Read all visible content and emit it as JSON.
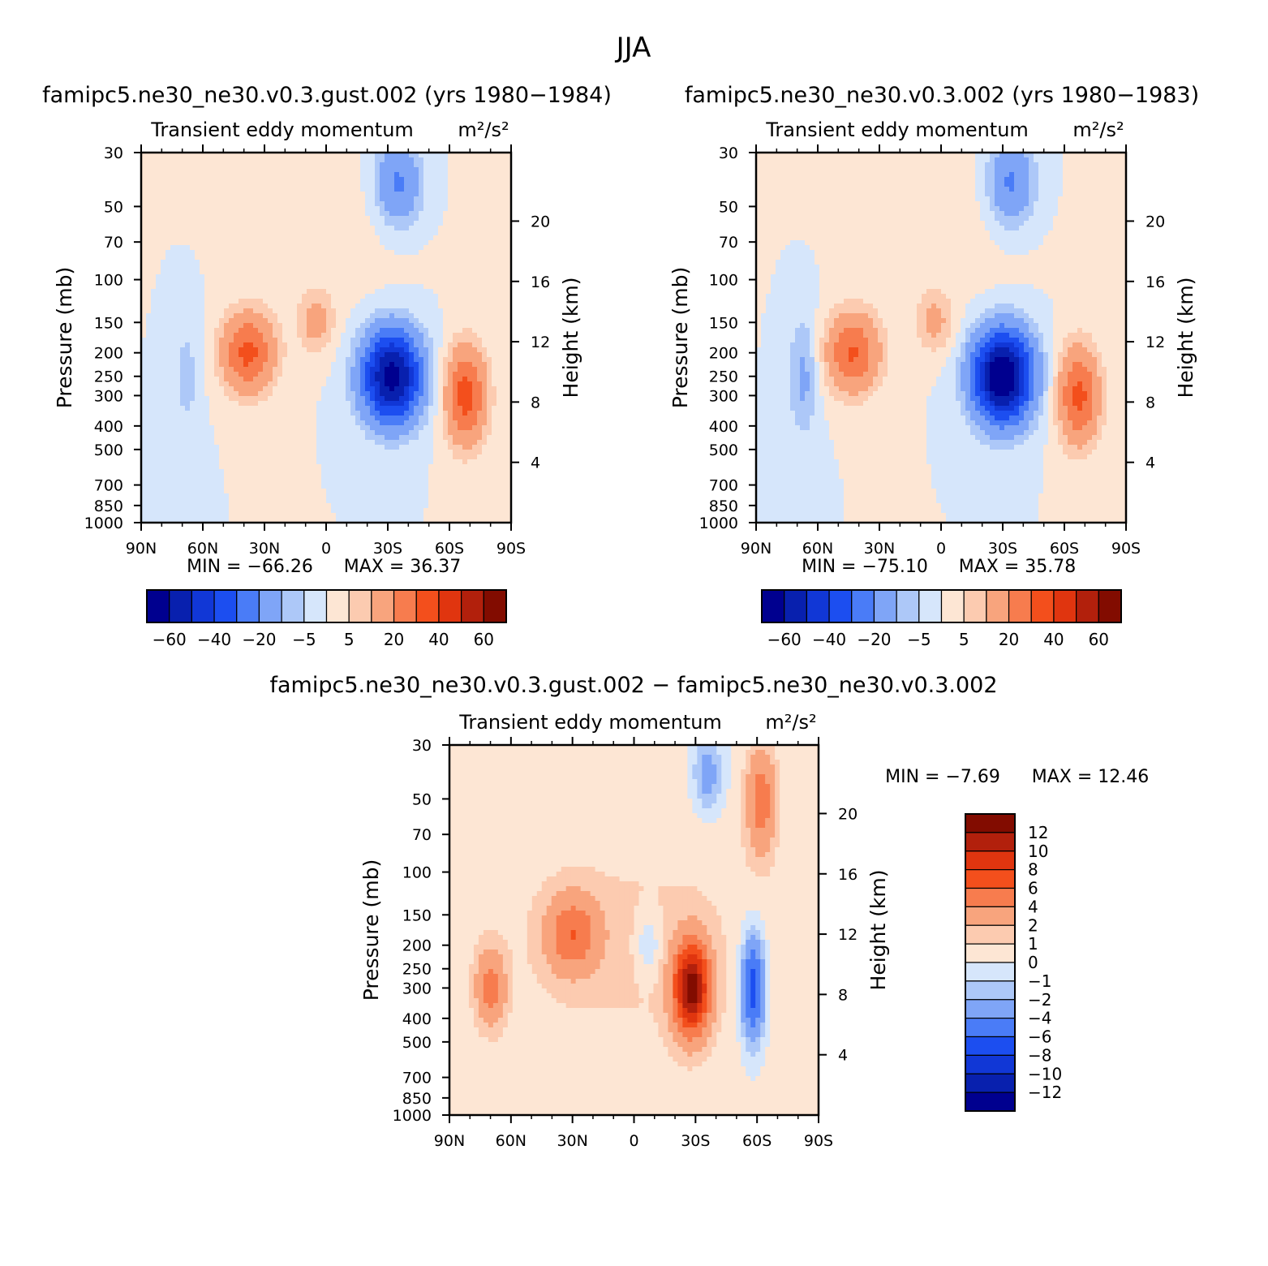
{
  "figure": {
    "title": "JJA"
  },
  "chart_data": [
    {
      "type": "heatmap",
      "panel": "top-left",
      "title": "famipc5.ne30_ne30.v0.3.gust.002 (yrs 1980−1984)",
      "subtitle": "Transient eddy momentum",
      "units": "m²/s²",
      "xlabel": "",
      "ylabel": "Pressure (mb)",
      "y2label": "Height (km)",
      "x_ticks": [
        "90N",
        "60N",
        "30N",
        "0",
        "30S",
        "60S",
        "90S"
      ],
      "x_values": [
        90,
        60,
        30,
        0,
        -30,
        -60,
        -90
      ],
      "xlim": [
        90,
        -90
      ],
      "y_ticks": [
        30,
        50,
        70,
        100,
        150,
        200,
        250,
        300,
        400,
        500,
        700,
        850,
        1000
      ],
      "y_scale": "log",
      "ylim": [
        1000,
        30
      ],
      "y2_ticks": [
        4,
        8,
        12,
        16,
        20
      ],
      "min_label": "MIN = −66.26",
      "max_label": "MAX = 36.37",
      "levels": [
        -60,
        -50,
        -40,
        -30,
        -20,
        -10,
        -5,
        0,
        5,
        10,
        20,
        30,
        40,
        50,
        60
      ],
      "colorbar_labels": [
        "−60",
        "−40",
        "−20",
        "−5",
        "5",
        "20",
        "40",
        "60"
      ],
      "colorbar_orientation": "horizontal",
      "features": [
        {
          "lat": 38,
          "p": 200,
          "value": 33,
          "sigma_lat": 9,
          "sigma_logp": 0.26
        },
        {
          "lat": 5,
          "p": 150,
          "value": 13,
          "sigma_lat": 6,
          "sigma_logp": 0.2
        },
        {
          "lat": -68,
          "p": 300,
          "value": 35,
          "sigma_lat": 7,
          "sigma_logp": 0.32
        },
        {
          "lat": -32,
          "p": 250,
          "value": -66.26,
          "sigma_lat": 10,
          "sigma_logp": 0.3
        },
        {
          "lat": -35,
          "p": 40,
          "value": -22,
          "sigma_lat": 8,
          "sigma_logp": 0.28
        },
        {
          "lat": 68,
          "p": 250,
          "value": -7,
          "sigma_lat": 5,
          "sigma_logp": 0.4
        },
        {
          "lat": -2,
          "p": 60,
          "value": 3,
          "sigma_lat": 25,
          "sigma_logp": 0.6
        }
      ]
    },
    {
      "type": "heatmap",
      "panel": "top-right",
      "title": "famipc5.ne30_ne30.v0.3.002 (yrs 1980−1983)",
      "subtitle": "Transient eddy momentum",
      "units": "m²/s²",
      "xlabel": "",
      "ylabel": "Pressure (mb)",
      "y2label": "Height (km)",
      "x_ticks": [
        "90N",
        "60N",
        "30N",
        "0",
        "30S",
        "60S",
        "90S"
      ],
      "x_values": [
        90,
        60,
        30,
        0,
        -30,
        -60,
        -90
      ],
      "xlim": [
        90,
        -90
      ],
      "y_ticks": [
        30,
        50,
        70,
        100,
        150,
        200,
        250,
        300,
        400,
        500,
        700,
        850,
        1000
      ],
      "y_scale": "log",
      "ylim": [
        1000,
        30
      ],
      "y2_ticks": [
        4,
        8,
        12,
        16,
        20
      ],
      "min_label": "MIN = −75.10",
      "max_label": "MAX = 35.78",
      "levels": [
        -60,
        -50,
        -40,
        -30,
        -20,
        -10,
        -5,
        0,
        5,
        10,
        20,
        30,
        40,
        50,
        60
      ],
      "colorbar_labels": [
        "−60",
        "−40",
        "−20",
        "−5",
        "5",
        "20",
        "40",
        "60"
      ],
      "colorbar_orientation": "horizontal",
      "features": [
        {
          "lat": 43,
          "p": 200,
          "value": 31,
          "sigma_lat": 9,
          "sigma_logp": 0.26
        },
        {
          "lat": 3,
          "p": 150,
          "value": 12,
          "sigma_lat": 6,
          "sigma_logp": 0.2
        },
        {
          "lat": -67,
          "p": 300,
          "value": 33,
          "sigma_lat": 7,
          "sigma_logp": 0.32
        },
        {
          "lat": -30,
          "p": 250,
          "value": -75.1,
          "sigma_lat": 10,
          "sigma_logp": 0.3
        },
        {
          "lat": -34,
          "p": 40,
          "value": -22,
          "sigma_lat": 8,
          "sigma_logp": 0.28
        },
        {
          "lat": 67,
          "p": 250,
          "value": -12,
          "sigma_lat": 5,
          "sigma_logp": 0.4
        },
        {
          "lat": -2,
          "p": 60,
          "value": 3,
          "sigma_lat": 25,
          "sigma_logp": 0.6
        }
      ]
    },
    {
      "type": "heatmap",
      "panel": "bottom-center",
      "title": "famipc5.ne30_ne30.v0.3.gust.002 − famipc5.ne30_ne30.v0.3.002",
      "subtitle": "Transient eddy momentum",
      "units": "m²/s²",
      "xlabel": "",
      "ylabel": "Pressure (mb)",
      "y2label": "Height (km)",
      "x_ticks": [
        "90N",
        "60N",
        "30N",
        "0",
        "30S",
        "60S",
        "90S"
      ],
      "x_values": [
        90,
        60,
        30,
        0,
        -30,
        -60,
        -90
      ],
      "xlim": [
        90,
        -90
      ],
      "y_ticks": [
        30,
        50,
        70,
        100,
        150,
        200,
        250,
        300,
        400,
        500,
        700,
        850,
        1000
      ],
      "y_scale": "log",
      "ylim": [
        1000,
        30
      ],
      "y2_ticks": [
        4,
        8,
        12,
        16,
        20
      ],
      "min_label": "MIN = −7.69",
      "max_label": "MAX = 12.46",
      "levels": [
        -12,
        -10,
        -8,
        -6,
        -4,
        -2,
        -1,
        0,
        1,
        2,
        4,
        6,
        8,
        10,
        12
      ],
      "colorbar_labels": [
        "12",
        "10",
        "8",
        "6",
        "4",
        "2",
        "1",
        "0",
        "−1",
        "−2",
        "−4",
        "−6",
        "−8",
        "−10",
        "−12"
      ],
      "colorbar_orientation": "vertical",
      "features": [
        {
          "lat": -28,
          "p": 300,
          "value": 12.46,
          "sigma_lat": 6,
          "sigma_logp": 0.3
        },
        {
          "lat": 30,
          "p": 180,
          "value": 5,
          "sigma_lat": 9,
          "sigma_logp": 0.25
        },
        {
          "lat": 70,
          "p": 300,
          "value": 4.5,
          "sigma_lat": 5,
          "sigma_logp": 0.25
        },
        {
          "lat": -58,
          "p": 300,
          "value": -7.69,
          "sigma_lat": 4,
          "sigma_logp": 0.35
        },
        {
          "lat": -62,
          "p": 50,
          "value": 5,
          "sigma_lat": 5,
          "sigma_logp": 0.35
        },
        {
          "lat": -36,
          "p": 40,
          "value": -3,
          "sigma_lat": 5,
          "sigma_logp": 0.25
        },
        {
          "lat": -7,
          "p": 200,
          "value": -2,
          "sigma_lat": 4,
          "sigma_logp": 0.2
        },
        {
          "lat": 0,
          "p": 200,
          "value": 1.2,
          "sigma_lat": 60,
          "sigma_logp": 1.0
        }
      ]
    }
  ],
  "colors": {
    "main_scale": [
      "#00008f",
      "#0820ae",
      "#1137d6",
      "#1c4ef0",
      "#4a7cf7",
      "#7fa5f7",
      "#adc8f8",
      "#d6e6fb",
      "#fde6d4",
      "#fccbb0",
      "#f8a47d",
      "#f77c4e",
      "#f34f1c",
      "#e0350f",
      "#b2200c",
      "#820c00"
    ],
    "diff_scale": [
      "#00008f",
      "#0820ae",
      "#1137d6",
      "#1c4ef0",
      "#4a7cf7",
      "#7fa5f7",
      "#adc8f8",
      "#d6e6fb",
      "#fde6d4",
      "#fccbb0",
      "#f8a47d",
      "#f77c4e",
      "#f34f1c",
      "#e0350f",
      "#b2200c",
      "#820c00"
    ]
  }
}
